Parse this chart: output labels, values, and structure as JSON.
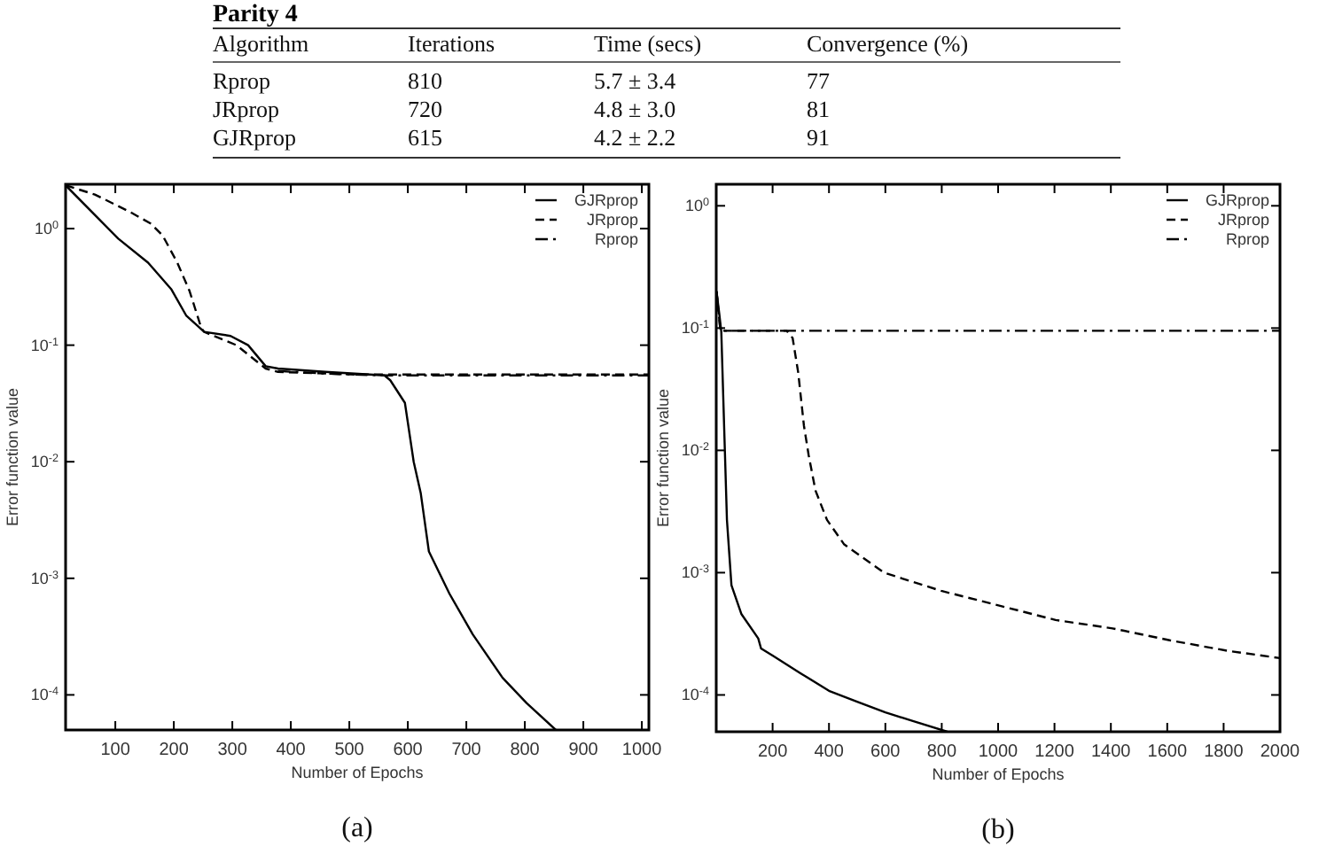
{
  "chart_data": [
    {
      "type": "other",
      "title": "Parity 4",
      "annotations": [
        "Algorithm",
        "Iterations",
        "Time (secs)",
        "Convergence (%)",
        "Rprop",
        "810",
        "5.7 ± 3.4",
        "77",
        "JRprop",
        "720",
        "4.8 ± 3.0",
        "81",
        "GJRprop",
        "615",
        "4.2 ± 2.2",
        "91"
      ]
    },
    {
      "type": "line",
      "xlabel": "Number of Epochs",
      "ylabel": "Error function value",
      "annotations": [
        "(a)"
      ],
      "log": "y",
      "legend": "top right",
      "grid": false,
      "xlim": [
        15,
        1012
      ],
      "xticks": [
        100,
        200,
        300,
        400,
        500,
        600,
        700,
        800,
        900,
        1000
      ],
      "ylim": [
        5e-05,
        2.4
      ],
      "yticks": [
        {
          "value": 1,
          "label": "10$^{0}$"
        },
        {
          "value": 0.1,
          "label": "10$^{-1}$"
        },
        {
          "value": 0.01,
          "label": "10$^{-2}$"
        },
        {
          "value": 0.001,
          "label": "10$^{-3}$"
        },
        {
          "value": 0.0001,
          "label": "10$^{-4}$"
        }
      ],
      "series": [
        {
          "name": "GJRprop",
          "color": "#000000",
          "line_style": "solid",
          "x": [
            15,
            105,
            156,
            196,
            221,
            252,
            297,
            327,
            357,
            378,
            459,
            560,
            570,
            595,
            610,
            622,
            636,
            671,
            711,
            762,
            803,
            853
          ],
          "values": [
            2.35,
            0.82,
            0.51,
            0.3,
            0.18,
            0.13,
            0.12,
            0.1,
            0.066,
            0.063,
            0.059,
            0.055,
            0.05,
            0.032,
            0.01,
            0.0054,
            0.0017,
            0.00074,
            0.00033,
            0.00014,
            8.5e-05,
            5e-05
          ]
        },
        {
          "name": "JRprop",
          "color": "#000000",
          "line_style": "dashed",
          "x": [
            15,
            65,
            125,
            161,
            181,
            206,
            227,
            247,
            252,
            307,
            357,
            378,
            509,
            1012
          ],
          "values": [
            2.35,
            1.96,
            1.39,
            1.1,
            0.87,
            0.51,
            0.29,
            0.14,
            0.13,
            0.1,
            0.063,
            0.059,
            0.056,
            0.056
          ]
        },
        {
          "name": "Rprop",
          "color": "#000000",
          "line_style": "dashdot",
          "x": [
            378,
            459,
            560,
            1012
          ],
          "values": [
            0.06,
            0.057,
            0.055,
            0.055
          ]
        }
      ]
    },
    {
      "type": "line",
      "xlabel": "Number of Epochs",
      "ylabel": "Error function value",
      "annotations": [
        "(b)"
      ],
      "log": "y",
      "legend": "top right",
      "grid": false,
      "xlim": [
        0,
        2000
      ],
      "xticks": [
        200,
        400,
        600,
        800,
        1000,
        1200,
        1400,
        1600,
        1800,
        2000
      ],
      "ylim": [
        5e-05,
        1.5
      ],
      "yticks": [
        {
          "value": 1,
          "label": "10$^{0}$"
        },
        {
          "value": 0.1,
          "label": "10$^{-1}$"
        },
        {
          "value": 0.01,
          "label": "10$^{-2}$"
        },
        {
          "value": 0.001,
          "label": "10$^{-3}$"
        },
        {
          "value": 0.0001,
          "label": "10$^{-4}$"
        }
      ],
      "series": [
        {
          "name": "GJRprop",
          "color": "#000000",
          "line_style": "solid",
          "x": [
            1,
            11,
            18,
            38,
            54,
            89,
            149,
            159,
            200,
            300,
            400,
            500,
            600,
            700,
            820
          ],
          "values": [
            0.2,
            0.13,
            0.093,
            0.0027,
            0.00079,
            0.00046,
            0.00029,
            0.00024,
            0.00021,
            0.00015,
            0.000108,
            8.8e-05,
            7.2e-05,
            6.1e-05,
            5e-05
          ]
        },
        {
          "name": "JRprop",
          "color": "#000000",
          "line_style": "dashed",
          "x": [
            1,
            15,
            250,
            271,
            291,
            311,
            328,
            352,
            393,
            454,
            595,
            798,
            1001,
            1204,
            1406,
            1609,
            1812,
            2000
          ],
          "values": [
            0.2,
            0.095,
            0.095,
            0.083,
            0.043,
            0.016,
            0.0091,
            0.0047,
            0.0027,
            0.0017,
            0.001,
            0.00071,
            0.00054,
            0.00041,
            0.00035,
            0.00028,
            0.00023,
            0.0002
          ]
        },
        {
          "name": "Rprop",
          "color": "#000000",
          "line_style": "dashdot",
          "x": [
            1,
            15,
            2000
          ],
          "values": [
            0.2,
            0.095,
            0.095
          ]
        }
      ]
    }
  ]
}
